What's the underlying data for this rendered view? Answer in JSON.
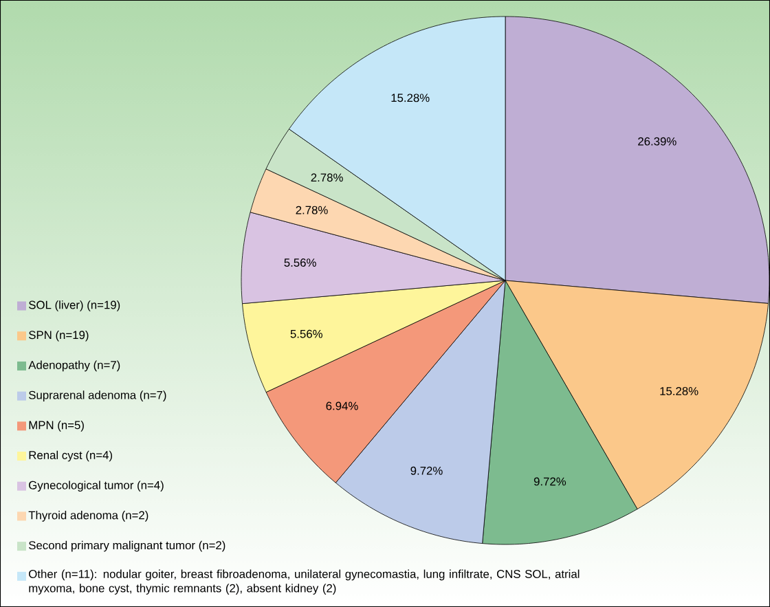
{
  "chart_data": {
    "type": "pie",
    "legend": "left",
    "categories": [
      "SOL (liver) (n=19)",
      "SPN (n=19)",
      "Adenopathy (n=7)",
      "Suprarenal adenoma (n=7)",
      "MPN (n=5)",
      "Renal cyst (n=4)",
      "Gynecological tumor (n=4)",
      "Thyroid adenoma (n=2)",
      "Second primary malignant tumor (n=2)",
      "Other (n=11): nodular goiter, breast fibroadenoma, unilateral gynecomastia, lung infiltrate, CNS SOL, atrial myxoma, bone cyst, thymic remnants (2), absent kidney (2)"
    ],
    "values": [
      26.39,
      15.28,
      9.72,
      9.72,
      6.94,
      5.56,
      5.56,
      2.78,
      2.78,
      15.28
    ],
    "value_labels": [
      "26.39%",
      "15.28%",
      "9.72%",
      "9.72%",
      "6.94%",
      "5.56%",
      "5.56%",
      "2.78%",
      "2.78%",
      "15.28%"
    ],
    "colors": [
      "#bfaed4",
      "#fbc88a",
      "#7dbb8f",
      "#bccbe9",
      "#f4987a",
      "#fef59b",
      "#d9c3e2",
      "#fdd7b1",
      "#c9e4c8",
      "#c5e7f8"
    ]
  }
}
